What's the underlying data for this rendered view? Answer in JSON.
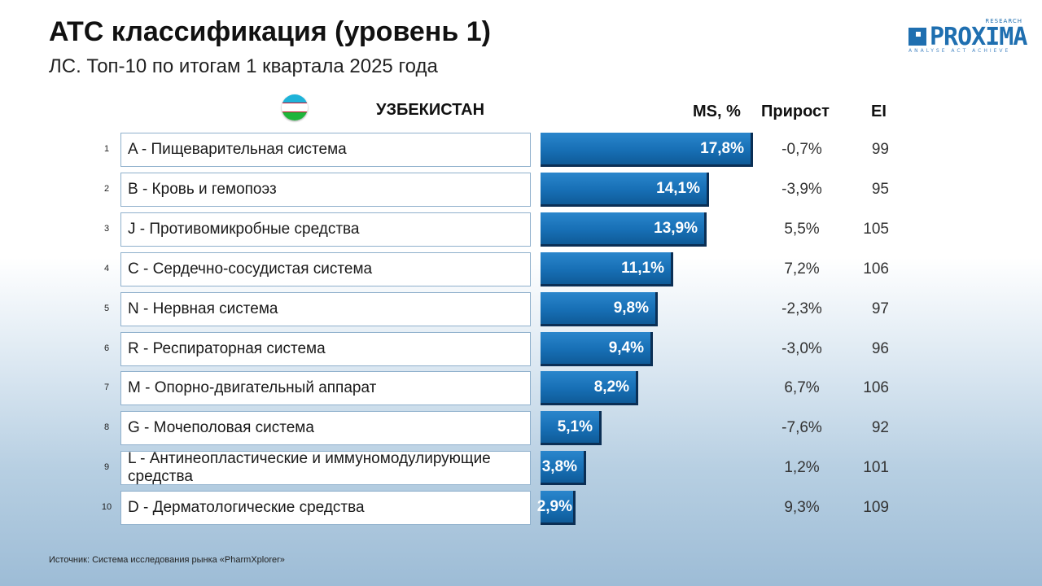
{
  "header": {
    "title": "ATC классификация (уровень 1)",
    "subtitle": "ЛС. Топ-10 по итогам 1 квартала 2025 года"
  },
  "logo": {
    "research": "RESEARCH",
    "word": "PROXIMA",
    "tagline": "ANALYSE  ACT  ACHIEVE"
  },
  "country": {
    "name": "УЗБЕКИСТАН",
    "flag_icon": "uzbekistan-flag-icon"
  },
  "columns": {
    "ms": "MS, %",
    "growth": "Прирост",
    "ei": "EI"
  },
  "chart_data": {
    "type": "bar",
    "orientation": "horizontal",
    "title": "ATC классификация (уровень 1)",
    "categories": [
      "A - Пищеварительная система",
      "B - Кровь и гемопоэз",
      "J - Противомикробные средства",
      "C - Сердечно-сосудистая система",
      "N - Нервная система",
      "R - Респираторная система",
      "M - Опорно-двигательный аппарат",
      "G - Мочеполовая система",
      "L - Антинеопластические и иммуномодулирующие средства",
      "D - Дерматологические средства"
    ],
    "ranks": [
      "1",
      "2",
      "3",
      "4",
      "5",
      "6",
      "7",
      "8",
      "9",
      "10"
    ],
    "values": [
      17.8,
      14.1,
      13.9,
      11.1,
      9.8,
      9.4,
      8.2,
      5.1,
      3.8,
      2.9
    ],
    "value_labels": [
      "17,8%",
      "14,1%",
      "13,9%",
      "11,1%",
      "9,8%",
      "9,4%",
      "8,2%",
      "5,1%",
      "3,8%",
      "2,9%"
    ],
    "growth": [
      "-0,7%",
      "-3,9%",
      "5,5%",
      "7,2%",
      "-2,3%",
      "-3,0%",
      "6,7%",
      "-7,6%",
      "1,2%",
      "9,3%"
    ],
    "ei": [
      "99",
      "95",
      "105",
      "106",
      "97",
      "96",
      "106",
      "92",
      "101",
      "109"
    ],
    "bar_color": "#176fb5"
  },
  "footer": {
    "source": "Источник: Система исследования рынка «PharmXplorer»"
  }
}
